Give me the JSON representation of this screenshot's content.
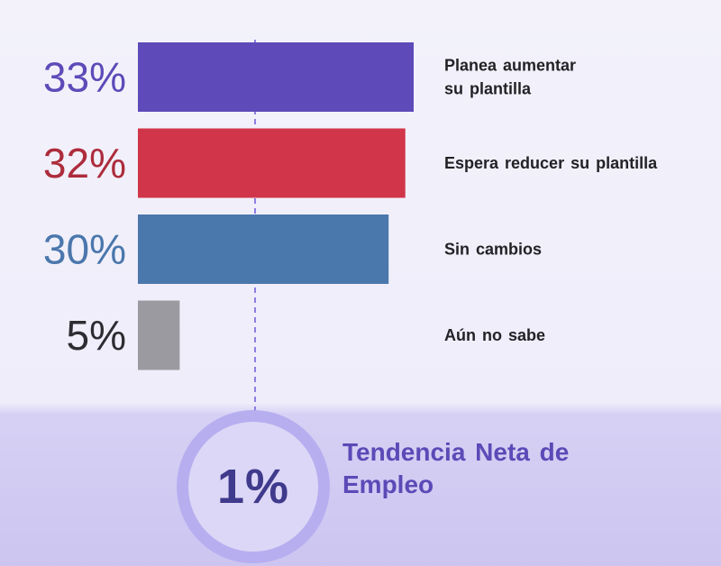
{
  "chart_data": {
    "type": "bar",
    "orientation": "horizontal",
    "categories": [
      "Planea aumentar su plantilla",
      "Espera reducer su plantilla",
      "Sin cambios",
      "Aún no sabe"
    ],
    "category_lines": [
      [
        "Planea aumentar",
        "su plantilla"
      ],
      [
        "Espera reducer su plantilla"
      ],
      [
        "Sin cambios"
      ],
      [
        "Aún no sabe"
      ]
    ],
    "values": [
      33,
      32,
      30,
      5
    ],
    "value_labels": [
      "33%",
      "32%",
      "30%",
      "5%"
    ],
    "colors": [
      "#5e4ab8",
      "#d13549",
      "#4a77ac",
      "#9a9aa0"
    ],
    "label_colors": [
      "#5e4ab8",
      "#ad2c3c",
      "#4a77ac",
      "#2c2c32"
    ],
    "xlim": [
      0,
      33
    ],
    "reference_line": "dashed",
    "reference_color": "#8d7ee3"
  },
  "net_employment": {
    "value": "1%",
    "label": "Tendencia Neta de Empleo"
  }
}
